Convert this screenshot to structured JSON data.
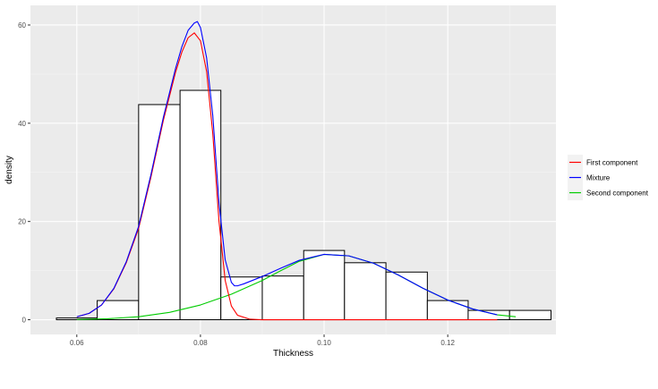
{
  "chart_data": {
    "type": "histogram",
    "title": "",
    "xlabel": "Thickness",
    "ylabel": "density",
    "xlim": [
      0.0525,
      0.1375
    ],
    "ylim": [
      -3.0,
      64.0
    ],
    "x_ticks": [
      0.06,
      0.08,
      0.1,
      0.12
    ],
    "x_tick_labels": [
      "0.06",
      "0.08",
      "0.10",
      "0.12"
    ],
    "y_ticks": [
      0,
      20,
      40,
      60
    ],
    "y_tick_labels": [
      "0",
      "20",
      "40",
      "60"
    ],
    "grid": true,
    "legend_position": "right",
    "bins": [
      {
        "x0": 0.0567,
        "x1": 0.0633,
        "density": 0.35
      },
      {
        "x0": 0.0633,
        "x1": 0.07,
        "density": 3.9
      },
      {
        "x0": 0.07,
        "x1": 0.0767,
        "density": 43.8
      },
      {
        "x0": 0.0767,
        "x1": 0.0833,
        "density": 46.7
      },
      {
        "x0": 0.0833,
        "x1": 0.09,
        "density": 8.7
      },
      {
        "x0": 0.09,
        "x1": 0.0967,
        "density": 8.9
      },
      {
        "x0": 0.0967,
        "x1": 0.1033,
        "density": 14.1
      },
      {
        "x0": 0.1033,
        "x1": 0.11,
        "density": 11.6
      },
      {
        "x0": 0.11,
        "x1": 0.1167,
        "density": 9.7
      },
      {
        "x0": 0.1167,
        "x1": 0.1233,
        "density": 3.9
      },
      {
        "x0": 0.1233,
        "x1": 0.13,
        "density": 1.9
      },
      {
        "x0": 0.13,
        "x1": 0.1367,
        "density": 1.9
      }
    ],
    "series": [
      {
        "name": "First component",
        "color": "#ff0000",
        "x": [
          0.06,
          0.062,
          0.064,
          0.066,
          0.068,
          0.07,
          0.072,
          0.074,
          0.076,
          0.077,
          0.078,
          0.079,
          0.08,
          0.081,
          0.082,
          0.083,
          0.084,
          0.085,
          0.086,
          0.088,
          0.09,
          0.095,
          0.1,
          0.11,
          0.12,
          0.128
        ],
        "y": [
          0.6,
          1.3,
          3.0,
          6.3,
          11.6,
          18.6,
          29.1,
          40.6,
          50.5,
          54.5,
          57.4,
          58.4,
          56.8,
          50.5,
          37.8,
          20.0,
          8.0,
          2.8,
          0.9,
          0.1,
          0,
          0,
          0,
          0,
          0,
          0
        ]
      },
      {
        "name": "Mixture",
        "color": "#0000ff",
        "x": [
          0.06,
          0.062,
          0.064,
          0.066,
          0.068,
          0.07,
          0.072,
          0.074,
          0.076,
          0.077,
          0.078,
          0.079,
          0.0795,
          0.08,
          0.081,
          0.082,
          0.083,
          0.084,
          0.085,
          0.0855,
          0.086,
          0.087,
          0.088,
          0.09,
          0.093,
          0.096,
          0.1,
          0.104,
          0.108,
          0.112,
          0.116,
          0.12,
          0.124,
          0.128
        ],
        "y": [
          0.6,
          1.3,
          3.0,
          6.4,
          11.8,
          19.0,
          29.6,
          41.2,
          51.3,
          55.6,
          58.9,
          60.4,
          60.7,
          59.5,
          53.3,
          41.5,
          23.8,
          12.2,
          7.6,
          6.9,
          6.9,
          7.3,
          7.8,
          8.8,
          10.5,
          12.1,
          13.3,
          13.0,
          11.5,
          9.1,
          6.4,
          4.0,
          2.2,
          1.0
        ]
      },
      {
        "name": "Second component",
        "color": "#00cc00",
        "x": [
          0.06,
          0.065,
          0.07,
          0.075,
          0.08,
          0.085,
          0.09,
          0.093,
          0.096,
          0.1,
          0.104,
          0.108,
          0.112,
          0.116,
          0.12,
          0.124,
          0.128,
          0.131
        ],
        "y": [
          0.05,
          0.2,
          0.6,
          1.5,
          3.0,
          5.2,
          8.0,
          10.0,
          11.9,
          13.3,
          13.0,
          11.5,
          9.1,
          6.4,
          4.0,
          2.2,
          1.0,
          0.6
        ]
      }
    ],
    "legend": [
      {
        "label": "First component",
        "color": "#ff0000"
      },
      {
        "label": "Mixture",
        "color": "#0000ff"
      },
      {
        "label": "Second component",
        "color": "#00cc00"
      }
    ],
    "colors": {
      "panel_background": "#ebebeb",
      "grid_major": "#ffffff",
      "bar_fill": "#ffffff",
      "bar_stroke": "#000000"
    }
  }
}
